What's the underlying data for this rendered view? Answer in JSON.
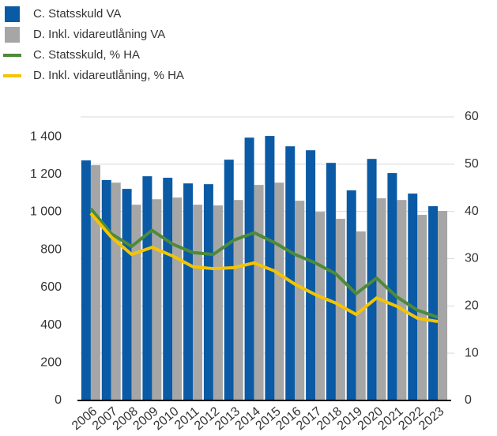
{
  "chart_data": {
    "type": "bar_line",
    "categories": [
      "2006",
      "2007",
      "2008",
      "2009",
      "2010",
      "2011",
      "2012",
      "2013",
      "2014",
      "2015",
      "2016",
      "2017",
      "2018",
      "2019",
      "2020",
      "2021",
      "2022",
      "2023"
    ],
    "series": [
      {
        "name": "C. Statsskuld VA",
        "color": "#0a5aa5",
        "kind": "bar",
        "values": [
          1274,
          1170,
          1123,
          1190,
          1182,
          1152,
          1148,
          1278,
          1395,
          1404,
          1349,
          1328,
          1261,
          1115,
          1282,
          1207,
          1098,
          1031
        ]
      },
      {
        "name": "D. Inkl. vidareutlåning VA",
        "color": "#a6a6a6",
        "kind": "bar",
        "values": [
          1249,
          1156,
          1039,
          1068,
          1077,
          1039,
          1035,
          1064,
          1144,
          1156,
          1060,
          1001,
          964,
          897,
          1073,
          1064,
          985,
          1006
        ]
      },
      {
        "name": "C. Statsskuld, % HA",
        "color": "#4e8a3a",
        "kind": "line",
        "axis": "y2",
        "values": [
          40.6,
          35.3,
          32.6,
          36,
          33.1,
          31.3,
          30.9,
          33.9,
          35.5,
          33.4,
          30.9,
          29.1,
          26.8,
          22.6,
          25.9,
          21.9,
          19.1,
          17.6
        ]
      },
      {
        "name": "D. Inkl. vidareutlåning, % HA",
        "color": "#f5c400",
        "kind": "line",
        "axis": "y2",
        "values": [
          39.6,
          34.6,
          30.9,
          32.4,
          30.6,
          28.3,
          27.9,
          28.1,
          29.1,
          27.4,
          24.6,
          22.4,
          20.6,
          18.2,
          21.7,
          19.9,
          17.4,
          16.7
        ]
      }
    ],
    "ylim": [
      0,
      1505
    ],
    "yticks": [
      0,
      200,
      400,
      600,
      800,
      {
        "value": 1000,
        "label": "1 000"
      },
      {
        "value": 1200,
        "label": "1 200"
      },
      {
        "value": 1400,
        "label": "1 400"
      }
    ],
    "y2lim": [
      0,
      60
    ],
    "y2ticks": [
      0,
      10,
      20,
      30,
      40,
      50,
      60
    ],
    "grid": true
  }
}
